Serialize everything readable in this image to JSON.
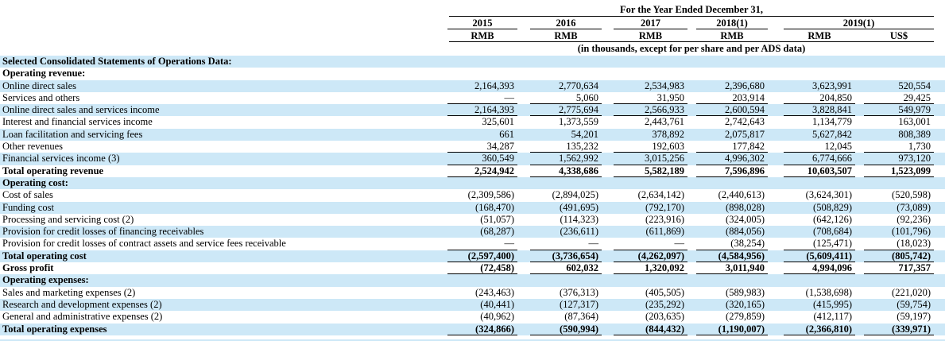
{
  "colors": {
    "row_highlight": "#cde8f7",
    "rule": "#000000",
    "text": "#000000"
  },
  "table": {
    "title": "For the Year Ended December 31,",
    "note": "(in thousands, except for per share and per ADS data)",
    "year_columns": [
      "2015",
      "2016",
      "2017",
      "2018(1)",
      "2019(1)"
    ],
    "currency_row": [
      "RMB",
      "RMB",
      "RMB",
      "RMB",
      "RMB",
      "US$"
    ],
    "rows": [
      {
        "label": "Selected Consolidated Statements of Operations Data:",
        "bold": true,
        "rule": null,
        "values": []
      },
      {
        "label": "Operating revenue:",
        "bold": true,
        "rule": null,
        "values": []
      },
      {
        "label": "Online direct sales",
        "bold": false,
        "rule": null,
        "values": [
          "2,164,393",
          "2,770,634",
          "2,534,983",
          "2,396,680",
          "3,623,991",
          "520,554"
        ]
      },
      {
        "label": "Services and others",
        "bold": false,
        "rule": "single",
        "values": [
          "—",
          "5,060",
          "31,950",
          "203,914",
          "204,850",
          "29,425"
        ]
      },
      {
        "label": "Online direct sales and services income",
        "bold": false,
        "rule": "single",
        "values": [
          "2,164,393",
          "2,775,694",
          "2,566,933",
          "2,600,594",
          "3,828,841",
          "549,979"
        ]
      },
      {
        "label": "Interest and financial services income",
        "bold": false,
        "rule": null,
        "values": [
          "325,601",
          "1,373,559",
          "2,443,761",
          "2,742,643",
          "1,134,779",
          "163,001"
        ]
      },
      {
        "label": "Loan facilitation and servicing fees",
        "bold": false,
        "rule": null,
        "values": [
          "661",
          "54,201",
          "378,892",
          "2,075,817",
          "5,627,842",
          "808,389"
        ]
      },
      {
        "label": "Other revenues",
        "bold": false,
        "rule": "single",
        "values": [
          "34,287",
          "135,232",
          "192,603",
          "177,842",
          "12,045",
          "1,730"
        ]
      },
      {
        "label": "Financial services income (3)",
        "bold": false,
        "rule": "single",
        "values": [
          "360,549",
          "1,562,992",
          "3,015,256",
          "4,996,302",
          "6,774,666",
          "973,120"
        ]
      },
      {
        "label": "Total operating revenue",
        "bold": true,
        "rule": "single",
        "values": [
          "2,524,942",
          "4,338,686",
          "5,582,189",
          "7,596,896",
          "10,603,507",
          "1,523,099"
        ]
      },
      {
        "label": "Operating cost:",
        "bold": true,
        "rule": null,
        "values": []
      },
      {
        "label": "Cost of sales",
        "bold": false,
        "rule": null,
        "values": [
          "(2,309,586)",
          "(2,894,025)",
          "(2,634,142)",
          "(2,440,613)",
          "(3,624,301)",
          "(520,598)"
        ]
      },
      {
        "label": "Funding cost",
        "bold": false,
        "rule": null,
        "values": [
          "(168,470)",
          "(491,695)",
          "(792,170)",
          "(898,028)",
          "(508,829)",
          "(73,089)"
        ]
      },
      {
        "label": "Processing and servicing cost (2)",
        "bold": false,
        "rule": null,
        "values": [
          "(51,057)",
          "(114,323)",
          "(223,916)",
          "(324,005)",
          "(642,126)",
          "(92,236)"
        ]
      },
      {
        "label": "Provision for credit losses of financing receivables",
        "bold": false,
        "rule": null,
        "values": [
          "(68,287)",
          "(236,611)",
          "(611,869)",
          "(884,056)",
          "(708,684)",
          "(101,796)"
        ]
      },
      {
        "label": "Provision for credit losses of contract assets and service fees receivable",
        "bold": false,
        "rule": "single",
        "values": [
          "—",
          "—",
          "—",
          "(38,254)",
          "(125,471)",
          "(18,023)"
        ]
      },
      {
        "label": "Total operating cost",
        "bold": true,
        "rule": "single",
        "values": [
          "(2,597,400)",
          "(3,736,654)",
          "(4,262,097)",
          "(4,584,956)",
          "(5,609,411)",
          "(805,742)"
        ]
      },
      {
        "label": "Gross profit",
        "bold": true,
        "rule": "single",
        "values": [
          "(72,458)",
          "602,032",
          "1,320,092",
          "3,011,940",
          "4,994,096",
          "717,357"
        ]
      },
      {
        "label": "Operating expenses:",
        "bold": true,
        "rule": null,
        "values": []
      },
      {
        "label": "Sales and marketing expenses (2)",
        "bold": false,
        "rule": null,
        "values": [
          "(243,463)",
          "(376,313)",
          "(405,505)",
          "(589,983)",
          "(1,538,698)",
          "(221,020)"
        ]
      },
      {
        "label": "Research and development expenses (2)",
        "bold": false,
        "rule": null,
        "values": [
          "(40,441)",
          "(127,317)",
          "(235,292)",
          "(320,165)",
          "(415,995)",
          "(59,754)"
        ]
      },
      {
        "label": "General and administrative expenses (2)",
        "bold": false,
        "rule": null,
        "values": [
          "(40,962)",
          "(87,364)",
          "(203,635)",
          "(279,859)",
          "(412,117)",
          "(59,197)"
        ]
      },
      {
        "label": "Total operating expenses",
        "bold": true,
        "rule": "double",
        "values": [
          "(324,866)",
          "(590,994)",
          "(844,432)",
          "(1,190,007)",
          "(2,366,810)",
          "(339,971)"
        ]
      }
    ]
  }
}
